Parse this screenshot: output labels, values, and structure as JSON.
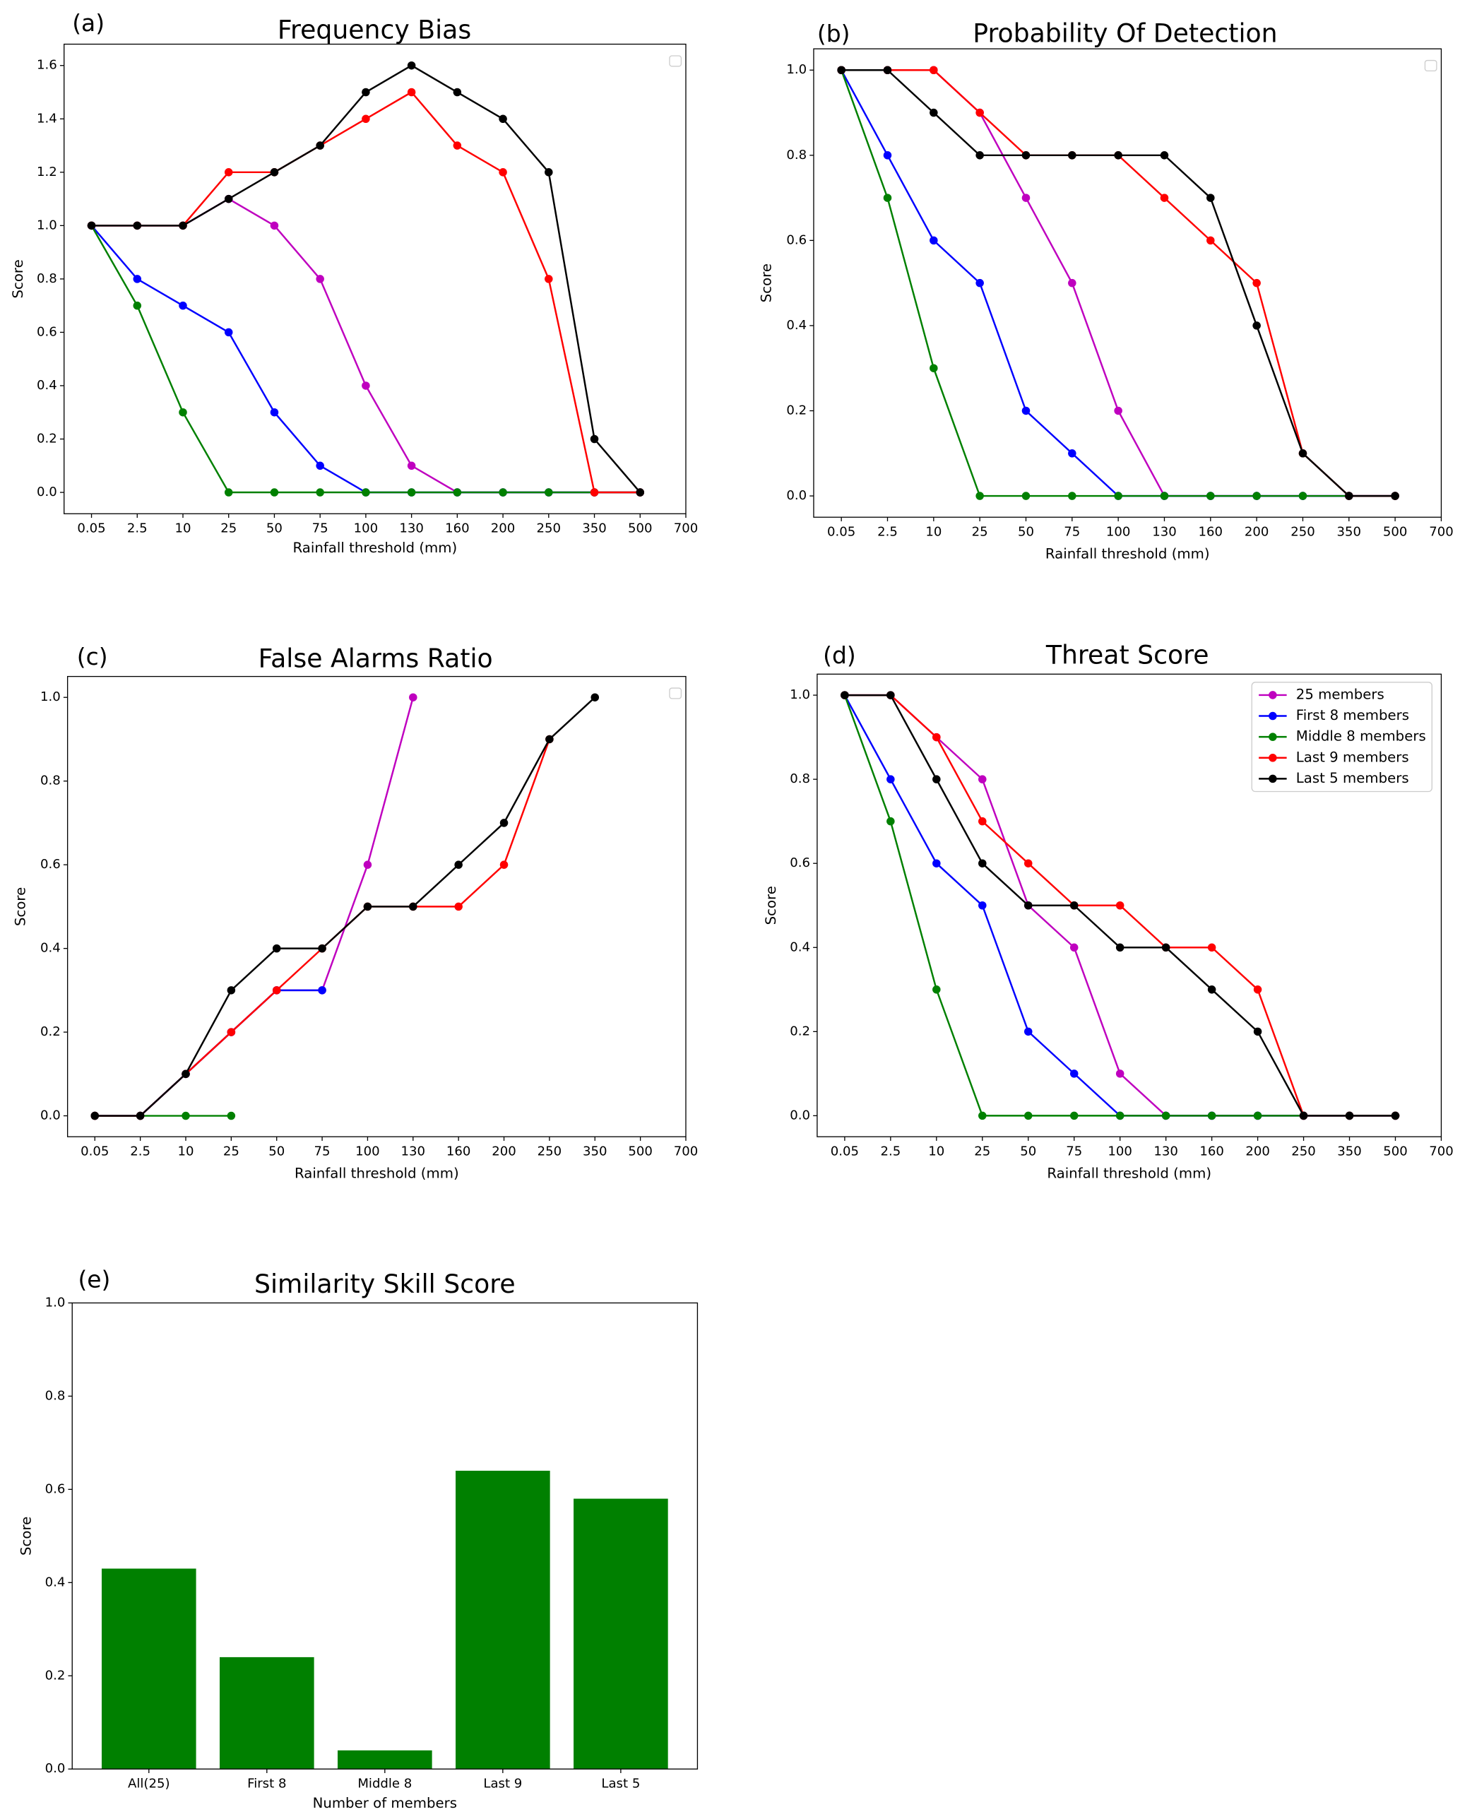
{
  "chart_data": [
    {
      "type": "line",
      "panel_label": "(a)",
      "title": "Frequency Bias",
      "xlabel": "Rainfall threshold (mm)",
      "ylabel": "Score",
      "categories": [
        "0.05",
        "2.5",
        "10",
        "25",
        "50",
        "75",
        "100",
        "130",
        "160",
        "200",
        "250",
        "350",
        "500",
        "700"
      ],
      "series": [
        {
          "color": "#bf00bf",
          "values": [
            1.0,
            1.0,
            1.0,
            1.1,
            1.0,
            0.8,
            0.4,
            0.1,
            0,
            0,
            0,
            0,
            0,
            null
          ]
        },
        {
          "color": "#0000ff",
          "values": [
            1.0,
            0.8,
            0.7,
            0.6,
            0.3,
            0.1,
            0,
            0,
            0,
            0,
            0,
            0,
            0,
            null
          ]
        },
        {
          "color": "#008000",
          "values": [
            1.0,
            0.7,
            0.3,
            0,
            0,
            0,
            0,
            0,
            0,
            0,
            0,
            0,
            0,
            null
          ]
        },
        {
          "color": "#ff0000",
          "values": [
            1.0,
            1.0,
            1.0,
            1.2,
            1.2,
            1.3,
            1.4,
            1.5,
            1.3,
            1.2,
            0.8,
            0,
            0,
            null
          ]
        },
        {
          "color": "#000000",
          "values": [
            1.0,
            1.0,
            1.0,
            1.1,
            1.2,
            1.3,
            1.5,
            1.6,
            1.5,
            1.4,
            1.2,
            0.2,
            0,
            null
          ]
        }
      ],
      "ylim": [
        -0.08,
        1.68
      ],
      "yticks": [
        {
          "value": 0,
          "label": "0.0"
        },
        0.2,
        0.4,
        0.6,
        0.8,
        {
          "value": 1,
          "label": "1.0"
        },
        1.2,
        1.4,
        1.6
      ]
    },
    {
      "type": "line",
      "panel_label": "(b)",
      "title": "Probability Of Detection",
      "xlabel": "Rainfall threshold (mm)",
      "ylabel": "Score",
      "categories": [
        "0.05",
        "2.5",
        "10",
        "25",
        "50",
        "75",
        "100",
        "130",
        "160",
        "200",
        "250",
        "350",
        "500",
        "700"
      ],
      "series": [
        {
          "color": "#bf00bf",
          "values": [
            1.0,
            1.0,
            1.0,
            0.9,
            0.7,
            0.5,
            0.2,
            0,
            0,
            0,
            0,
            0,
            0,
            null
          ]
        },
        {
          "color": "#0000ff",
          "values": [
            1.0,
            0.8,
            0.6,
            0.5,
            0.2,
            0.1,
            0,
            0,
            0,
            0,
            0,
            0,
            0,
            null
          ]
        },
        {
          "color": "#008000",
          "values": [
            1.0,
            0.7,
            0.3,
            0,
            0,
            0,
            0,
            0,
            0,
            0,
            0,
            0,
            0,
            null
          ]
        },
        {
          "color": "#ff0000",
          "values": [
            1.0,
            1.0,
            1.0,
            0.9,
            0.8,
            0.8,
            0.8,
            0.7,
            0.6,
            0.5,
            0.1,
            0,
            0,
            null
          ]
        },
        {
          "color": "#000000",
          "values": [
            1.0,
            1.0,
            0.9,
            0.8,
            0.8,
            0.8,
            0.8,
            0.8,
            0.7,
            0.4,
            0.1,
            0,
            0,
            null
          ]
        }
      ],
      "ylim": [
        -0.05,
        1.05
      ],
      "yticks": [
        {
          "value": 0,
          "label": "0.0"
        },
        0.2,
        0.4,
        0.6,
        0.8,
        {
          "value": 1,
          "label": "1.0"
        }
      ]
    },
    {
      "type": "line",
      "panel_label": "(c)",
      "title": "False Alarms Ratio",
      "xlabel": "Rainfall threshold (mm)",
      "ylabel": "Score",
      "categories": [
        "0.05",
        "2.5",
        "10",
        "25",
        "50",
        "75",
        "100",
        "130",
        "160",
        "200",
        "250",
        "350",
        "500",
        "700"
      ],
      "series": [
        {
          "color": "#bf00bf",
          "values": [
            0,
            0,
            0.1,
            0.2,
            0.3,
            0.3,
            0.6,
            1.0,
            null,
            null,
            null,
            null,
            null,
            null
          ]
        },
        {
          "color": "#0000ff",
          "values": [
            0,
            0,
            0.1,
            0.2,
            0.3,
            0.3,
            null,
            null,
            null,
            null,
            null,
            null,
            null,
            null
          ]
        },
        {
          "color": "#008000",
          "values": [
            0,
            0,
            0,
            0,
            null,
            null,
            null,
            null,
            null,
            null,
            null,
            null,
            null,
            null
          ]
        },
        {
          "color": "#ff0000",
          "values": [
            0,
            0,
            0.1,
            0.2,
            0.3,
            0.4,
            0.5,
            0.5,
            0.5,
            0.6,
            0.9,
            null,
            null,
            null
          ]
        },
        {
          "color": "#000000",
          "values": [
            0,
            0,
            0.1,
            0.3,
            0.4,
            0.4,
            0.5,
            0.5,
            0.6,
            0.7,
            0.9,
            1.0,
            null,
            null
          ]
        }
      ],
      "ylim": [
        -0.05,
        1.05
      ],
      "yticks": [
        {
          "value": 0,
          "label": "0.0"
        },
        0.2,
        0.4,
        0.6,
        0.8,
        {
          "value": 1,
          "label": "1.0"
        }
      ]
    },
    {
      "type": "line",
      "panel_label": "(d)",
      "title": "Threat Score",
      "xlabel": "Rainfall threshold (mm)",
      "ylabel": "Score",
      "categories": [
        "0.05",
        "2.5",
        "10",
        "25",
        "50",
        "75",
        "100",
        "130",
        "160",
        "200",
        "250",
        "350",
        "500",
        "700"
      ],
      "series": [
        {
          "name": "25 members",
          "color": "#bf00bf",
          "values": [
            1.0,
            1.0,
            0.9,
            0.8,
            0.5,
            0.4,
            0.1,
            0,
            0,
            0,
            0,
            0,
            0,
            null
          ]
        },
        {
          "name": "First 8 members",
          "color": "#0000ff",
          "values": [
            1.0,
            0.8,
            0.6,
            0.5,
            0.2,
            0.1,
            0,
            0,
            0,
            0,
            0,
            0,
            0,
            null
          ]
        },
        {
          "name": "Middle 8 members",
          "color": "#008000",
          "values": [
            1.0,
            0.7,
            0.3,
            0,
            0,
            0,
            0,
            0,
            0,
            0,
            0,
            0,
            0,
            null
          ]
        },
        {
          "name": "Last 9 members",
          "color": "#ff0000",
          "values": [
            1.0,
            1.0,
            0.9,
            0.7,
            0.6,
            0.5,
            0.5,
            0.4,
            0.4,
            0.3,
            0,
            0,
            0,
            null
          ]
        },
        {
          "name": "Last 5 members",
          "color": "#000000",
          "values": [
            1.0,
            1.0,
            0.8,
            0.6,
            0.5,
            0.5,
            0.4,
            0.4,
            0.3,
            0.2,
            0,
            0,
            0,
            null
          ]
        }
      ],
      "ylim": [
        -0.05,
        1.05
      ],
      "yticks": [
        {
          "value": 0,
          "label": "0.0"
        },
        0.2,
        0.4,
        0.6,
        0.8,
        {
          "value": 1,
          "label": "1.0"
        }
      ],
      "legend": "upper right"
    },
    {
      "type": "bar",
      "panel_label": "(e)",
      "title": "Similarity Skill Score",
      "xlabel": "Number of members",
      "ylabel": "Score",
      "categories": [
        "All(25)",
        "First 8",
        "Middle 8",
        "Last 9",
        "Last 5"
      ],
      "values": [
        0.43,
        0.24,
        0.04,
        0.64,
        0.58
      ],
      "color": "#008000",
      "ylim": [
        0,
        1
      ],
      "yticks": [
        {
          "value": 0,
          "label": "0.0"
        },
        0.2,
        0.4,
        0.6,
        0.8,
        {
          "value": 1,
          "label": "1.0"
        }
      ]
    }
  ]
}
